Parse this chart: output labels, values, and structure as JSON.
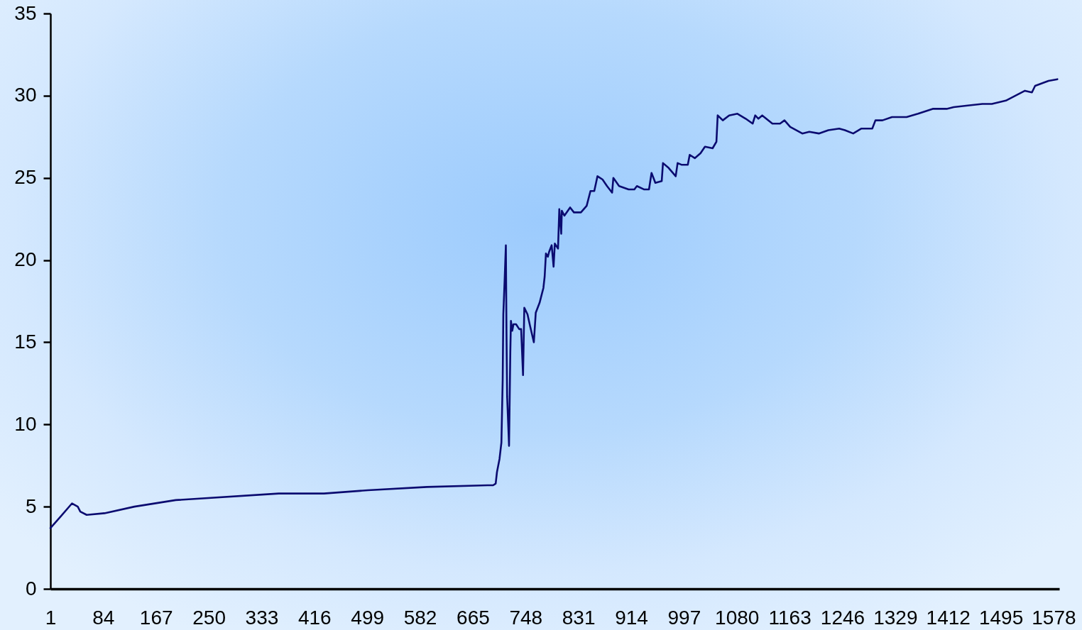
{
  "chart_data": {
    "type": "line",
    "color": "#0b0b70",
    "x": [
      1,
      17,
      35,
      44,
      48,
      58,
      86,
      133,
      198,
      360,
      431,
      500,
      593,
      688,
      697,
      701,
      703,
      707,
      710,
      711,
      712,
      713,
      715,
      717,
      718,
      719,
      722,
      724,
      725,
      727,
      729,
      733,
      738,
      741,
      744,
      746,
      751,
      755,
      761,
      764,
      770,
      776,
      778,
      780,
      783,
      785,
      789,
      792,
      794,
      799,
      801,
      804,
      805,
      809,
      818,
      824,
      835,
      844,
      850,
      856,
      861,
      869,
      876,
      884,
      886,
      895,
      910,
      919,
      923,
      934,
      942,
      946,
      952,
      962,
      964,
      973,
      984,
      987,
      993,
      1003,
      1006,
      1014,
      1023,
      1030,
      1042,
      1048,
      1050,
      1058,
      1068,
      1081,
      1094,
      1105,
      1109,
      1114,
      1120,
      1136,
      1148,
      1155,
      1164,
      1183,
      1194,
      1209,
      1224,
      1241,
      1250,
      1263,
      1276,
      1293,
      1298,
      1309,
      1324,
      1347,
      1365,
      1388,
      1410,
      1421,
      1443,
      1466,
      1481,
      1503,
      1518,
      1533,
      1544,
      1549,
      1570,
      1584
    ],
    "values": [
      3.7,
      4.4,
      5.2,
      5.0,
      4.7,
      4.5,
      4.6,
      5.0,
      5.4,
      5.8,
      5.8,
      6.0,
      6.2,
      6.3,
      6.3,
      6.4,
      7.1,
      7.9,
      8.9,
      10.8,
      12.7,
      16.7,
      18.7,
      20.9,
      15.5,
      11.7,
      8.7,
      14.4,
      16.3,
      15.7,
      16.1,
      16.1,
      15.8,
      15.8,
      13.0,
      17.1,
      16.7,
      16.0,
      15.0,
      16.8,
      17.4,
      18.3,
      19.0,
      20.4,
      20.2,
      20.5,
      20.9,
      19.6,
      21.0,
      20.7,
      23.1,
      21.6,
      23.0,
      22.7,
      23.2,
      22.9,
      22.9,
      23.3,
      24.2,
      24.2,
      25.1,
      24.9,
      24.5,
      24.1,
      25.0,
      24.5,
      24.3,
      24.3,
      24.5,
      24.3,
      24.3,
      25.3,
      24.7,
      24.8,
      25.9,
      25.6,
      25.1,
      25.9,
      25.8,
      25.8,
      26.4,
      26.2,
      26.5,
      26.9,
      26.8,
      27.2,
      28.8,
      28.5,
      28.8,
      28.9,
      28.6,
      28.3,
      28.8,
      28.6,
      28.8,
      28.3,
      28.3,
      28.5,
      28.1,
      27.7,
      27.8,
      27.7,
      27.9,
      28.0,
      27.9,
      27.7,
      28.0,
      28.0,
      28.5,
      28.5,
      28.7,
      28.7,
      28.9,
      29.2,
      29.2,
      29.3,
      29.4,
      29.5,
      29.5,
      29.7,
      30.0,
      30.3,
      30.2,
      30.6,
      30.9,
      31.0
    ],
    "xlim": [
      1,
      1587
    ],
    "xticks": [
      1,
      84,
      167,
      250,
      333,
      416,
      499,
      582,
      665,
      748,
      831,
      914,
      997,
      1080,
      1163,
      1246,
      1329,
      1412,
      1495,
      1578
    ],
    "ylim": [
      0,
      35
    ],
    "yticks": [
      0,
      5,
      10,
      15,
      20,
      25,
      30,
      35
    ]
  }
}
